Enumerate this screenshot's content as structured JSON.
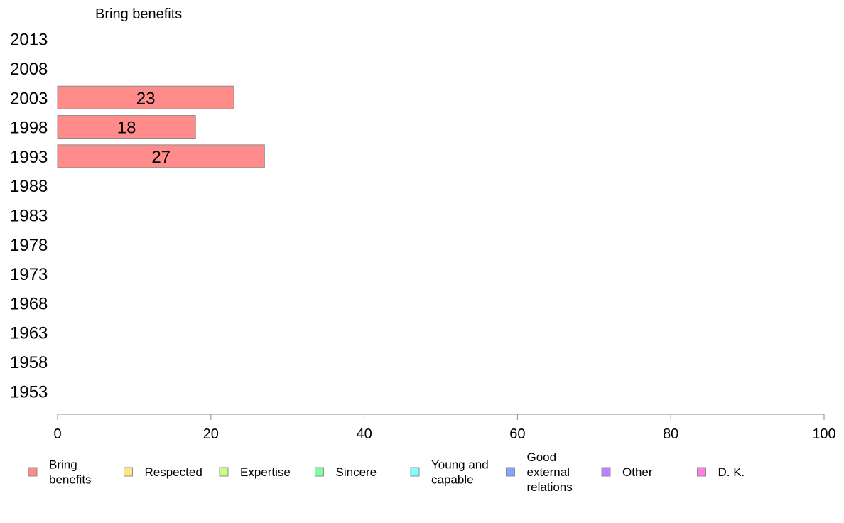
{
  "chart_data": {
    "type": "bar",
    "orientation": "horizontal",
    "stacked": true,
    "title": "",
    "panel_title": "Bring benefits",
    "xlabel": "",
    "ylabel": "",
    "xlim": [
      0,
      100
    ],
    "x_ticks": [
      "0",
      "20",
      "40",
      "60",
      "80",
      "100"
    ],
    "categories": [
      "2013",
      "2008",
      "2003",
      "1998",
      "1993",
      "1988",
      "1983",
      "1978",
      "1973",
      "1968",
      "1963",
      "1958",
      "1953"
    ],
    "series": [
      {
        "name": "Bring benefits",
        "color": "#ff8b8b",
        "values": [
          null,
          null,
          23,
          18,
          27,
          null,
          null,
          null,
          null,
          null,
          null,
          null,
          null
        ],
        "data_labels": [
          "",
          "",
          "23",
          "18",
          "27",
          "",
          "",
          "",
          "",
          "",
          "",
          "",
          ""
        ]
      }
    ],
    "grid": false,
    "legend_position": "bottom",
    "legend": [
      {
        "label": "Bring\nbenefits",
        "color": "#ff8b8b"
      },
      {
        "label": "Respected",
        "color": "#ffe680"
      },
      {
        "label": "Expertise",
        "color": "#ccff80"
      },
      {
        "label": "Sincere",
        "color": "#80ff9f"
      },
      {
        "label": "Young and\ncapable",
        "color": "#80ffff"
      },
      {
        "label": "Good\nexternal\nrelations",
        "color": "#80a6ff"
      },
      {
        "label": "Other",
        "color": "#bf80ff"
      },
      {
        "label": "D. K.",
        "color": "#ff80e6"
      }
    ]
  }
}
